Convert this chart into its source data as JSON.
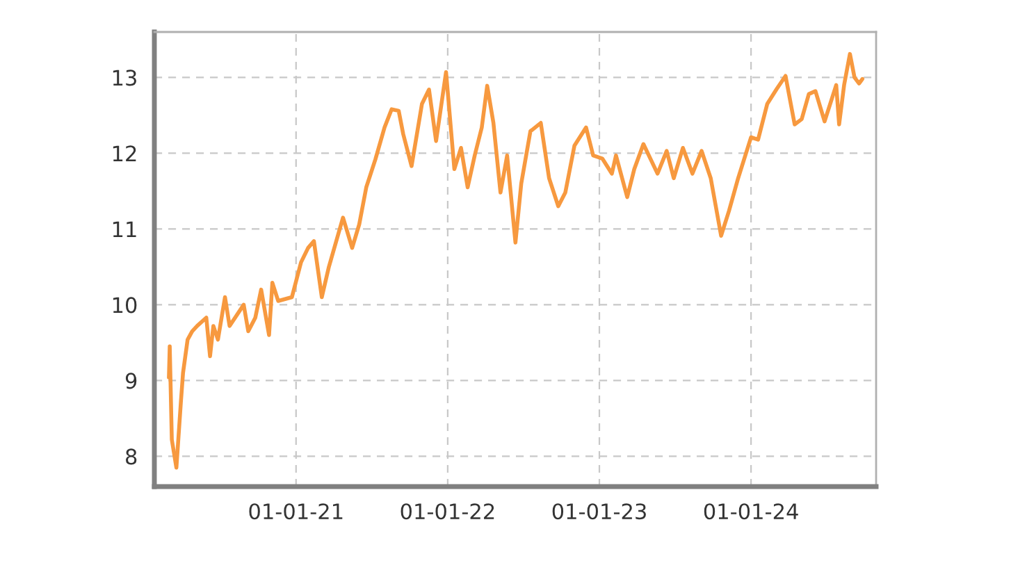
{
  "chart_data": {
    "type": "line",
    "color": "#f7993f",
    "grid": true,
    "x": [
      "2020-03-01",
      "2020-03-03",
      "2020-03-08",
      "2020-03-19",
      "2020-03-30",
      "2020-04-04",
      "2020-04-15",
      "2020-04-26",
      "2020-05-08",
      "2020-05-30",
      "2020-06-08",
      "2020-06-16",
      "2020-06-27",
      "2020-07-14",
      "2020-07-25",
      "2020-08-28",
      "2020-09-08",
      "2020-09-25",
      "2020-10-09",
      "2020-10-28",
      "2020-11-05",
      "2020-11-19",
      "2020-12-22",
      "2021-01-13",
      "2021-01-30",
      "2021-02-13",
      "2021-03-04",
      "2021-03-21",
      "2021-04-24",
      "2021-05-16",
      "2021-06-02",
      "2021-06-19",
      "2021-07-11",
      "2021-08-02",
      "2021-08-19",
      "2021-09-05",
      "2021-09-16",
      "2021-10-06",
      "2021-10-31",
      "2021-11-17",
      "2021-12-04",
      "2021-12-28",
      "2022-01-17",
      "2022-02-02",
      "2022-02-18",
      "2022-03-07",
      "2022-03-24",
      "2022-04-06",
      "2022-04-21",
      "2022-05-08",
      "2022-05-24",
      "2022-06-13",
      "2022-06-27",
      "2022-07-19",
      "2022-08-13",
      "2022-09-02",
      "2022-09-24",
      "2022-10-11",
      "2022-11-02",
      "2022-11-30",
      "2022-12-17",
      "2023-01-08",
      "2023-01-31",
      "2023-02-10",
      "2023-03-09",
      "2023-03-26",
      "2023-04-17",
      "2023-05-21",
      "2023-06-12",
      "2023-06-29",
      "2023-07-21",
      "2023-08-13",
      "2023-09-04",
      "2023-09-26",
      "2023-10-21",
      "2023-11-09",
      "2023-12-01",
      "2024-01-01",
      "2024-01-18",
      "2024-02-09",
      "2024-03-03",
      "2024-03-24",
      "2024-04-15",
      "2024-05-02",
      "2024-05-19",
      "2024-06-04",
      "2024-06-26",
      "2024-07-24",
      "2024-07-31",
      "2024-08-12",
      "2024-08-26",
      "2024-09-06",
      "2024-09-17",
      "2024-09-25"
    ],
    "values": [
      9.04,
      9.45,
      8.22,
      7.85,
      8.73,
      9.1,
      9.54,
      9.65,
      9.72,
      9.83,
      9.32,
      9.72,
      9.54,
      10.1,
      9.72,
      10.0,
      9.65,
      9.83,
      10.2,
      9.6,
      10.29,
      10.05,
      10.1,
      10.56,
      10.75,
      10.84,
      10.1,
      10.5,
      11.15,
      10.75,
      11.06,
      11.55,
      11.92,
      12.34,
      12.58,
      12.56,
      12.25,
      11.83,
      12.65,
      12.84,
      12.16,
      13.07,
      11.79,
      12.07,
      11.55,
      11.97,
      12.34,
      12.89,
      12.4,
      11.48,
      11.97,
      10.82,
      11.6,
      12.29,
      12.4,
      11.67,
      11.3,
      11.48,
      12.1,
      12.34,
      11.97,
      11.93,
      11.73,
      11.97,
      11.42,
      11.79,
      12.12,
      11.73,
      12.03,
      11.67,
      12.07,
      11.73,
      12.03,
      11.67,
      10.91,
      11.24,
      11.67,
      12.21,
      12.18,
      12.65,
      12.85,
      13.02,
      12.38,
      12.45,
      12.78,
      12.82,
      12.42,
      12.9,
      12.38,
      12.9,
      13.31,
      13.0,
      12.92,
      12.98
    ],
    "xlim": [
      "2020-01-26",
      "2024-10-28"
    ],
    "ylim": [
      7.6,
      13.6
    ],
    "xticks": [
      {
        "value": "2021-01-01",
        "label": "01-01-21"
      },
      {
        "value": "2022-01-01",
        "label": "01-01-22"
      },
      {
        "value": "2023-01-01",
        "label": "01-01-23"
      },
      {
        "value": "2024-01-01",
        "label": "01-01-24"
      }
    ],
    "yticks": [
      8,
      9,
      10,
      11,
      12,
      13
    ]
  }
}
